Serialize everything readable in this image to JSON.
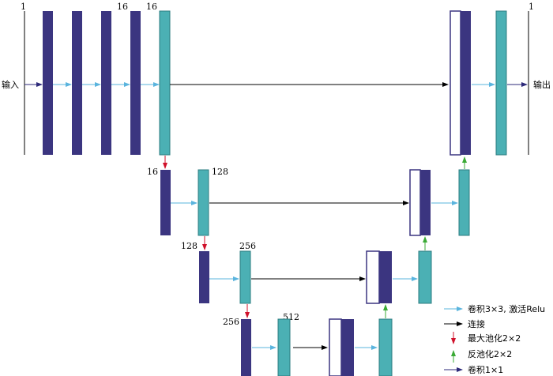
{
  "diagram": {
    "input_label": "输入",
    "output_label": "输出",
    "channel_labels": {
      "in_channels": "1",
      "enc1_mid": "16",
      "enc1_out": "16",
      "out_channels": "1",
      "enc2_in": "16",
      "enc2_out": "128",
      "enc3_in": "128",
      "enc3_out": "256",
      "enc4_in": "256",
      "enc4_out": "512"
    }
  },
  "legend": {
    "items": [
      {
        "label": "卷积3×3, 激活Relu",
        "color": "#5ab4de"
      },
      {
        "label": "连接",
        "color": "#000000"
      },
      {
        "label": "最大池化2×2",
        "color": "#d0102a"
      },
      {
        "label": "反池化2×2",
        "color": "#3aaa35"
      },
      {
        "label": "卷积1×1",
        "color": "#2e2a7a"
      }
    ]
  },
  "colors": {
    "dark_block": "#3b3580",
    "teal_block": "#4bb0b4",
    "light_blue_arrow": "#5ab4de",
    "black_arrow": "#000000",
    "red_arrow": "#d0102a",
    "green_arrow": "#3aaa35",
    "purple_arrow": "#2e2a7a"
  }
}
